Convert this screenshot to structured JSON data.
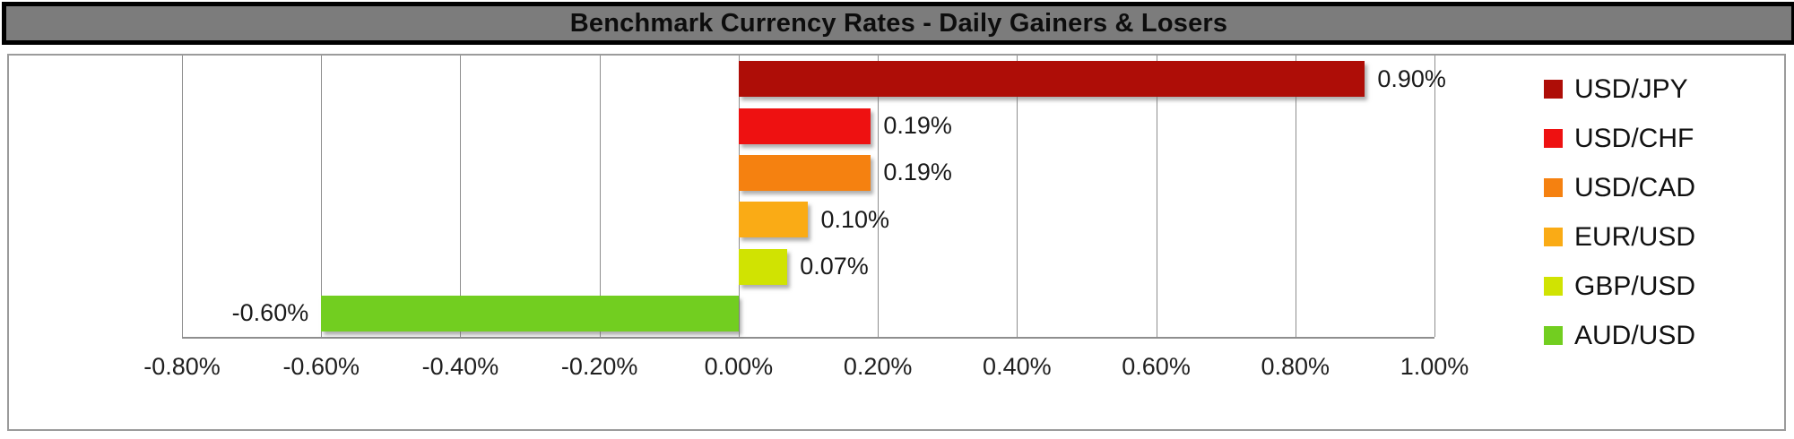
{
  "chart_data": {
    "type": "bar",
    "orientation": "horizontal",
    "title": "Benchmark Currency Rates - Daily Gainers & Losers",
    "categories": [
      "USD/JPY",
      "USD/CHF",
      "USD/CAD",
      "EUR/USD",
      "GBP/USD",
      "AUD/USD"
    ],
    "values": [
      0.9,
      0.19,
      0.19,
      0.1,
      0.07,
      -0.6
    ],
    "value_labels": [
      "0.90%",
      "0.19%",
      "0.19%",
      "0.10%",
      "0.07%",
      "-0.60%"
    ],
    "bar_colors": [
      "#ae0d07",
      "#ee1111",
      "#f58110",
      "#faab15",
      "#d0e302",
      "#72ce20"
    ],
    "xlabel": "",
    "ylabel": "",
    "xlim": [
      -0.8,
      1.0
    ],
    "x_ticks": [
      -0.8,
      -0.6,
      -0.4,
      -0.2,
      0.0,
      0.2,
      0.4,
      0.6,
      0.8,
      1.0
    ],
    "x_tick_labels": [
      "-0.80%",
      "-0.60%",
      "-0.40%",
      "-0.20%",
      "0.00%",
      "0.20%",
      "0.40%",
      "0.60%",
      "0.80%",
      "1.00%"
    ],
    "grid": "vertical",
    "legend_position": "right",
    "legend": [
      {
        "label": "USD/JPY",
        "color": "#ae0d07"
      },
      {
        "label": "USD/CHF",
        "color": "#ee1111"
      },
      {
        "label": "USD/CAD",
        "color": "#f58110"
      },
      {
        "label": "EUR/USD",
        "color": "#faab15"
      },
      {
        "label": "GBP/USD",
        "color": "#d0e302"
      },
      {
        "label": "AUD/USD",
        "color": "#72ce20"
      }
    ]
  },
  "colors": {
    "title_bg": "#7c7c7c",
    "title_border": "#000000",
    "body_border": "#9b9b9b",
    "gridline": "#8e8e8e",
    "background": "#ffffff"
  }
}
